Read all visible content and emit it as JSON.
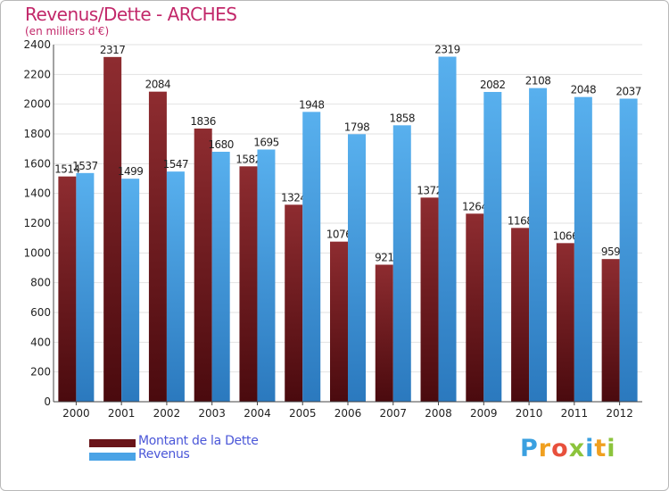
{
  "title": "Revenus/Dette - ARCHES",
  "subtitle": "(en milliers d'€)",
  "chart_data": {
    "type": "bar",
    "categories": [
      "2000",
      "2001",
      "2002",
      "2003",
      "2004",
      "2005",
      "2006",
      "2007",
      "2008",
      "2009",
      "2010",
      "2011",
      "2012"
    ],
    "series": [
      {
        "name": "Montant de la Dette",
        "color": "#7a1a1f",
        "values": [
          1514,
          2317,
          2084,
          1836,
          1582,
          1324,
          1076,
          921,
          1372,
          1264,
          1168,
          1066,
          959
        ]
      },
      {
        "name": "Revenus",
        "color": "#4aa3e6",
        "values": [
          1537,
          1499,
          1547,
          1680,
          1695,
          1948,
          1798,
          1858,
          2319,
          2082,
          2108,
          2048,
          2037
        ]
      }
    ],
    "yticks": [
      0,
      200,
      400,
      600,
      800,
      1000,
      1200,
      1400,
      1600,
      1800,
      2000,
      2200,
      2400
    ],
    "ylim": [
      0,
      2400
    ],
    "grid": true,
    "legend_position": "bottom-left"
  },
  "legend": [
    {
      "label": "Montant de la Dette",
      "color": "#7a1a1f"
    },
    {
      "label": "Revenus",
      "color": "#4aa3e6"
    }
  ],
  "logo": {
    "letters": [
      "P",
      "r",
      "o",
      "x",
      "i",
      "t",
      "i"
    ],
    "colors": [
      "#3aa0e0",
      "#f0a020",
      "#e8503c",
      "#8cc43c",
      "#3aa0e0",
      "#f0a020",
      "#8cc43c"
    ]
  }
}
